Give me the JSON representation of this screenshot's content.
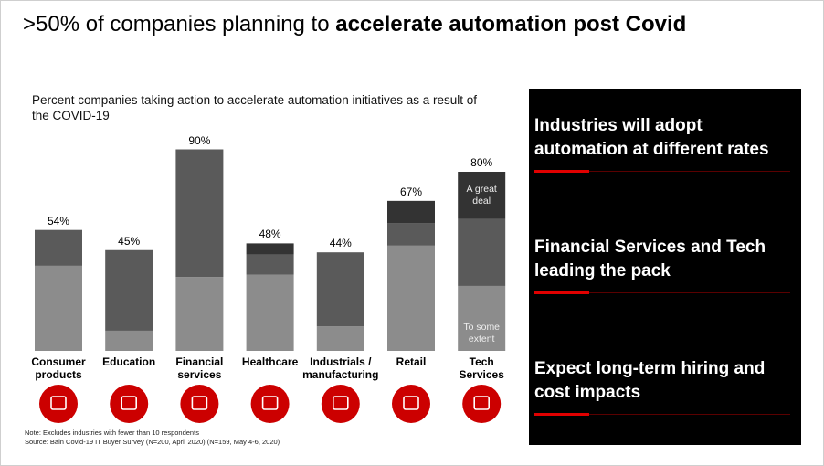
{
  "header": {
    "title_parts": [
      ">50% of companies planning to ",
      "accelerate automation post Covid"
    ]
  },
  "chart_data": {
    "type": "bar",
    "stacked": true,
    "subtitle": "Percent companies taking action to accelerate automation initiatives as a result of the COVID-19",
    "categories": [
      "Consumer\nproducts",
      "Education",
      "Financial\nservices",
      "Healthcare",
      "Industrials /\nmanufacturing",
      "Retail",
      "Tech\nServices"
    ],
    "series": [
      {
        "name": "To some extent",
        "color": "#8c8c8c",
        "values": [
          38,
          9,
          33,
          34,
          11,
          47,
          29
        ]
      },
      {
        "color": "#5a5a5a",
        "values": [
          16,
          36,
          57,
          9,
          33,
          10,
          30
        ]
      },
      {
        "name": "A great deal",
        "color": "#333333",
        "values": [
          0,
          0,
          0,
          5,
          0,
          10,
          21
        ]
      }
    ],
    "totals": {
      "values": [
        54,
        45,
        90,
        48,
        44,
        67,
        80
      ],
      "value_labels": [
        "54%",
        "45%",
        "90%",
        "48%",
        "44%",
        "67%",
        "80%"
      ]
    },
    "notes": [
      "Note: Excludes industries with fewer than 10 respondents",
      "Source: Bain Covid-19 IT Buyer Survey (N=200, April 2020) (N=159, May 4-6, 2020)"
    ]
  },
  "panel": {
    "items": [
      "Industries will adopt automation at different rates",
      "Financial Services and Tech leading the pack",
      "Expect long-term hiring and cost impacts"
    ]
  }
}
